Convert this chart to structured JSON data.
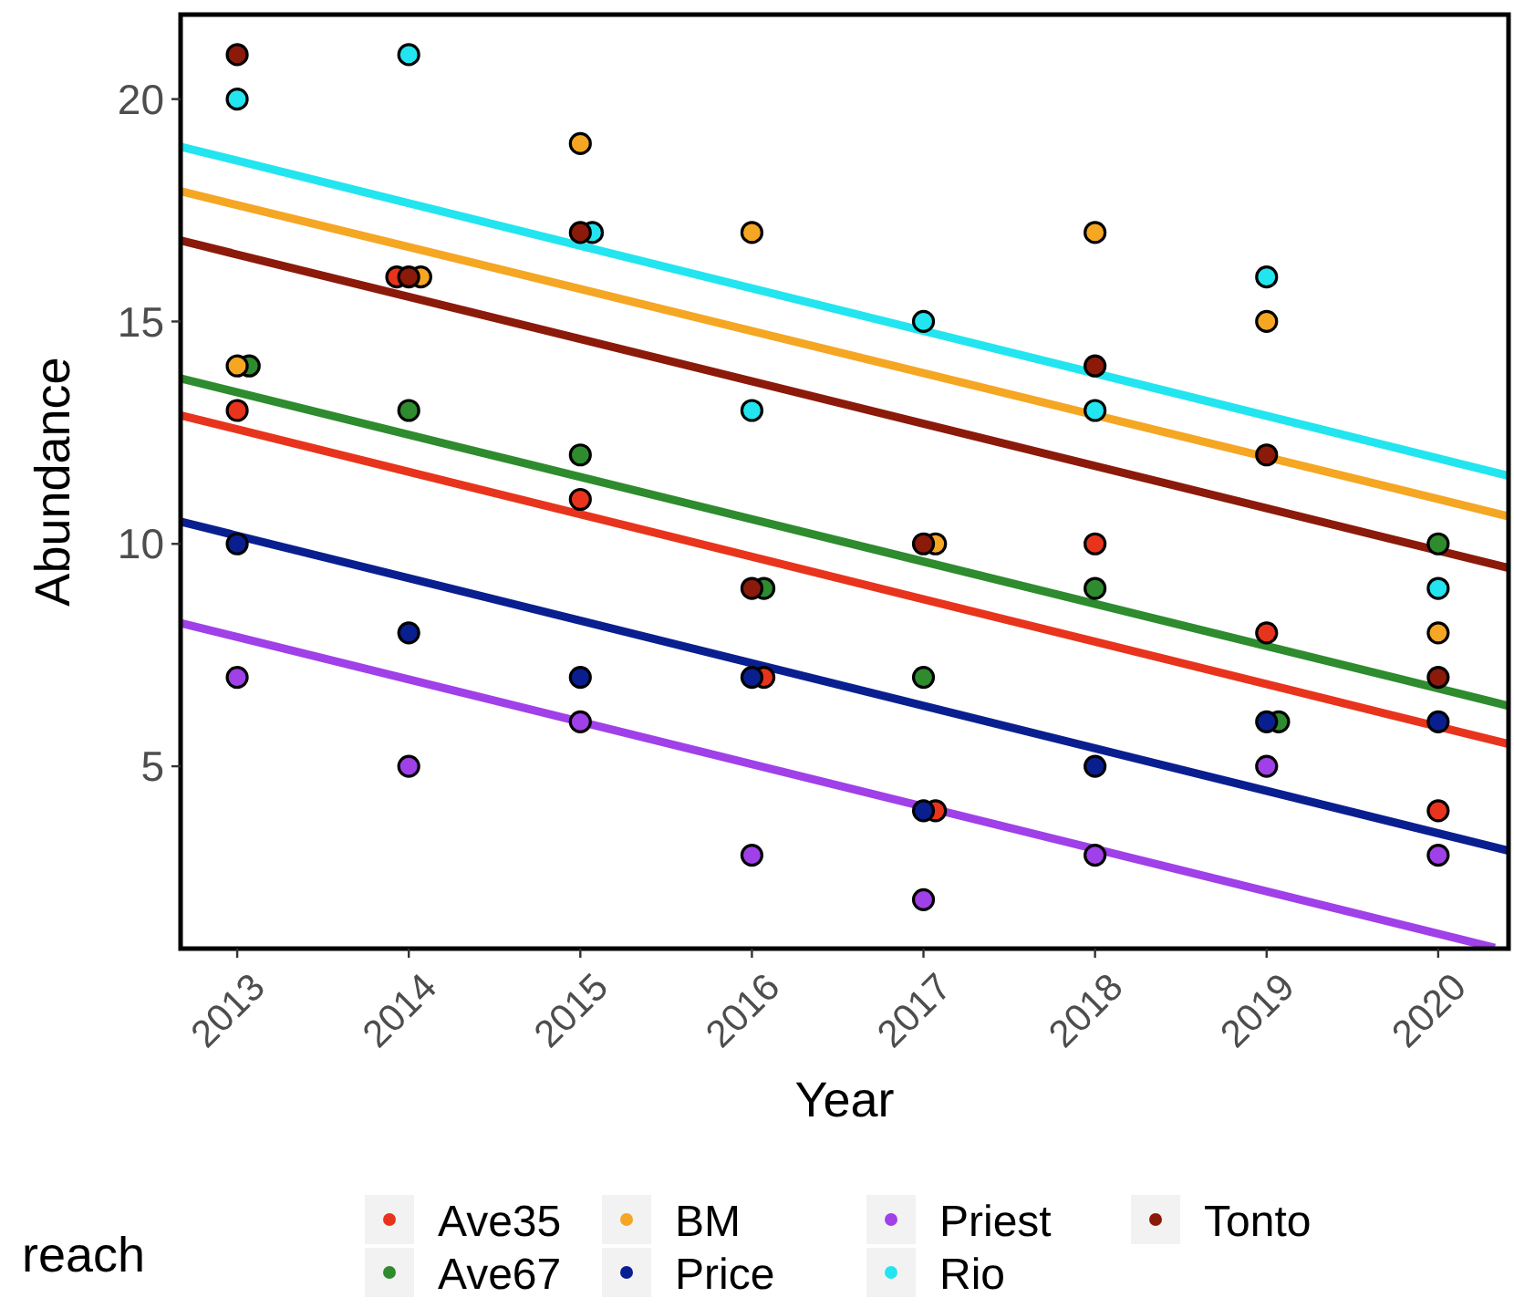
{
  "chart_data": {
    "type": "scatter",
    "xlabel": "Year",
    "ylabel": "Abundance",
    "legend_title": "reach",
    "legend": "bottom",
    "marker": "circle",
    "grid": false,
    "x": [
      2013,
      2014,
      2015,
      2016,
      2017,
      2018,
      2019,
      2020
    ],
    "xlim": [
      2012.67,
      2020.41
    ],
    "xticks": [
      2013,
      2014,
      2015,
      2016,
      2017,
      2018,
      2019,
      2020
    ],
    "ylim": [
      0.9,
      21.9
    ],
    "yticks": [
      5,
      10,
      15,
      20
    ],
    "series": [
      {
        "name": "Ave35",
        "color": "#e8341c",
        "x": [
          2013,
          2013.93,
          2015,
          2016.07,
          2017.07,
          2018,
          2019,
          2020
        ],
        "values": [
          13,
          16,
          11,
          7,
          4,
          10,
          8,
          4
        ]
      },
      {
        "name": "Ave67",
        "color": "#2e8b2e",
        "x": [
          2013.07,
          2014,
          2015,
          2016.07,
          2017,
          2018,
          2019.07,
          2020
        ],
        "values": [
          14,
          13,
          12,
          9,
          7,
          9,
          6,
          10
        ]
      },
      {
        "name": "BM",
        "color": "#f5a623",
        "x": [
          2013,
          2014.07,
          2015,
          2016,
          2017.07,
          2018,
          2019,
          2020
        ],
        "values": [
          14,
          16,
          19,
          17,
          10,
          17,
          15,
          8
        ]
      },
      {
        "name": "Price",
        "color": "#0a1f8f",
        "values": [
          10,
          8,
          7,
          7,
          4,
          5,
          6,
          6
        ]
      },
      {
        "name": "Priest",
        "color": "#a040e8",
        "values": [
          7,
          5,
          6,
          3,
          2,
          3,
          5,
          3
        ]
      },
      {
        "name": "Rio",
        "color": "#22e5f0",
        "x": [
          2013,
          2014,
          2015.07,
          2016,
          2017,
          2018,
          2019,
          2020
        ],
        "values": [
          20,
          21,
          17,
          13,
          15,
          13,
          16,
          9
        ]
      },
      {
        "name": "Tonto",
        "color": "#8b1a0a",
        "values": [
          21,
          16,
          17,
          9,
          10,
          14,
          12,
          7
        ]
      },
      {
        "type": "line",
        "marker": "none",
        "color": "#e8341c",
        "x": [
          2012.67,
          2020.41
        ],
        "values": [
          12.89,
          5.5
        ]
      },
      {
        "type": "line",
        "marker": "none",
        "color": "#2e8b2e",
        "x": [
          2012.67,
          2020.41
        ],
        "values": [
          13.72,
          6.36
        ]
      },
      {
        "type": "line",
        "marker": "none",
        "color": "#f5a623",
        "x": [
          2012.67,
          2020.41
        ],
        "values": [
          17.93,
          10.62
        ]
      },
      {
        "type": "line",
        "marker": "none",
        "color": "#0a1f8f",
        "x": [
          2012.67,
          2020.41
        ],
        "values": [
          10.5,
          3.1
        ]
      },
      {
        "type": "line",
        "marker": "none",
        "color": "#a040e8",
        "x": [
          2012.67,
          2020.33
        ],
        "values": [
          8.22,
          0.92
        ]
      },
      {
        "type": "line",
        "marker": "none",
        "color": "#22e5f0",
        "x": [
          2012.67,
          2020.41
        ],
        "values": [
          18.93,
          11.53
        ]
      },
      {
        "type": "line",
        "marker": "none",
        "color": "#8b1a0a",
        "x": [
          2012.67,
          2020.41
        ],
        "values": [
          16.82,
          9.46
        ]
      }
    ]
  }
}
